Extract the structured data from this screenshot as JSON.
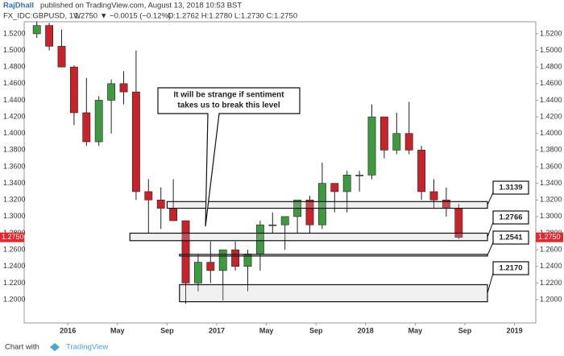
{
  "header": {
    "author": "RajDhall",
    "published": "published on TradingView.com, August 13, 2018 10:53 BST",
    "symbol": "FX_IDC:GBPUSD, 1W",
    "last": "1.2750",
    "change": "▼ −0.0015 (−0.12%)",
    "ohlc": "O:1.2762 H:1.2780 L:1.2730 C:1.2750"
  },
  "footer": {
    "text": "Chart with",
    "brand": "TradingView"
  },
  "chart_data": {
    "type": "candlestick",
    "x": [
      "2015-10",
      "2015-11",
      "2015-12",
      "2016-01",
      "2016-02",
      "2016-03",
      "2016-04",
      "2016-05",
      "2016-06",
      "2016-07",
      "2016-08",
      "2016-09",
      "2016-10",
      "2016-11",
      "2016-12",
      "2017-01",
      "2017-02",
      "2017-03",
      "2017-04",
      "2017-05",
      "2017-06",
      "2017-07",
      "2017-08",
      "2017-09",
      "2017-10",
      "2017-11",
      "2017-12",
      "2018-01",
      "2018-02",
      "2018-03",
      "2018-04",
      "2018-05",
      "2018-06",
      "2018-07",
      "2018-08"
    ],
    "open": [
      1.52,
      1.53,
      1.505,
      1.48,
      1.425,
      1.39,
      1.44,
      1.46,
      1.45,
      1.33,
      1.32,
      1.31,
      1.295,
      1.22,
      1.245,
      1.235,
      1.26,
      1.24,
      1.255,
      1.29,
      1.29,
      1.3,
      1.32,
      1.29,
      1.34,
      1.33,
      1.35,
      1.35,
      1.42,
      1.38,
      1.4,
      1.38,
      1.33,
      1.32,
      1.31
    ],
    "high": [
      1.535,
      1.533,
      1.525,
      1.482,
      1.467,
      1.445,
      1.465,
      1.475,
      1.5,
      1.345,
      1.335,
      1.345,
      1.295,
      1.255,
      1.27,
      1.26,
      1.27,
      1.26,
      1.295,
      1.305,
      1.3,
      1.32,
      1.325,
      1.365,
      1.34,
      1.355,
      1.355,
      1.435,
      1.42,
      1.425,
      1.438,
      1.385,
      1.345,
      1.335,
      1.315
    ],
    "low": [
      1.515,
      1.5,
      1.48,
      1.41,
      1.385,
      1.385,
      1.4,
      1.435,
      1.32,
      1.28,
      1.285,
      1.295,
      1.195,
      1.21,
      1.22,
      1.199,
      1.235,
      1.21,
      1.235,
      1.28,
      1.26,
      1.28,
      1.28,
      1.285,
      1.305,
      1.305,
      1.33,
      1.345,
      1.37,
      1.375,
      1.375,
      1.32,
      1.31,
      1.3,
      1.273
    ],
    "close": [
      1.53,
      1.505,
      1.48,
      1.425,
      1.39,
      1.44,
      1.46,
      1.45,
      1.33,
      1.32,
      1.31,
      1.295,
      1.22,
      1.245,
      1.235,
      1.26,
      1.24,
      1.255,
      1.29,
      1.29,
      1.3,
      1.32,
      1.29,
      1.34,
      1.33,
      1.35,
      1.35,
      1.42,
      1.38,
      1.4,
      1.38,
      1.33,
      1.32,
      1.31,
      1.275
    ],
    "up_color": "#3e9a3e",
    "down_color": "#c8222a",
    "xlim": [
      "2015-10",
      "2019-02"
    ],
    "xticks": [
      {
        "value": "2016-01",
        "label": "2016"
      },
      {
        "value": "2016-05",
        "label": "May"
      },
      {
        "value": "2016-09",
        "label": "Sep"
      },
      {
        "value": "2017-01",
        "label": "2017"
      },
      {
        "value": "2017-05",
        "label": "May"
      },
      {
        "value": "2017-09",
        "label": "Sep"
      },
      {
        "value": "2018-01",
        "label": "2018"
      },
      {
        "value": "2018-05",
        "label": "May"
      },
      {
        "value": "2018-09",
        "label": "Sep"
      },
      {
        "value": "2019-01",
        "label": "2019"
      }
    ],
    "ylim": [
      1.1719,
      1.5345
    ],
    "yticks": [
      {
        "value": 1.2,
        "label": "1.2000"
      },
      {
        "value": 1.22,
        "label": "1.2200"
      },
      {
        "value": 1.24,
        "label": "1.2400"
      },
      {
        "value": 1.26,
        "label": "1.2600"
      },
      {
        "value": 1.28,
        "label": "1.2800"
      },
      {
        "value": 1.3,
        "label": "1.3000"
      },
      {
        "value": 1.32,
        "label": "1.3200"
      },
      {
        "value": 1.34,
        "label": "1.3400"
      },
      {
        "value": 1.36,
        "label": "1.3600"
      },
      {
        "value": 1.38,
        "label": "1.3800"
      },
      {
        "value": 1.4,
        "label": "1.4000"
      },
      {
        "value": 1.42,
        "label": "1.4200"
      },
      {
        "value": 1.44,
        "label": "1.4400"
      },
      {
        "value": 1.46,
        "label": "1.4600"
      },
      {
        "value": 1.48,
        "label": "1.4800"
      },
      {
        "value": 1.5,
        "label": "1.5000"
      },
      {
        "value": 1.52,
        "label": "1.5200"
      }
    ],
    "last_price": {
      "value": 1.275,
      "label": "1.2750",
      "color": "#e8262e"
    },
    "zones": [
      {
        "label": "1.3139",
        "top": 1.318,
        "bottom": 1.31,
        "from": "2016-09"
      },
      {
        "label": "1.2766",
        "top": 1.28,
        "bottom": 1.271,
        "from": "2016-06"
      },
      {
        "label": "1.2541",
        "top": 1.2545,
        "bottom": 1.2525,
        "from": "2016-10"
      },
      {
        "label": "1.2170",
        "top": 1.218,
        "bottom": 1.1975,
        "from": "2016-10"
      }
    ],
    "annotation": [
      "It will be strange if sentiment",
      "takes us to break this level"
    ]
  }
}
